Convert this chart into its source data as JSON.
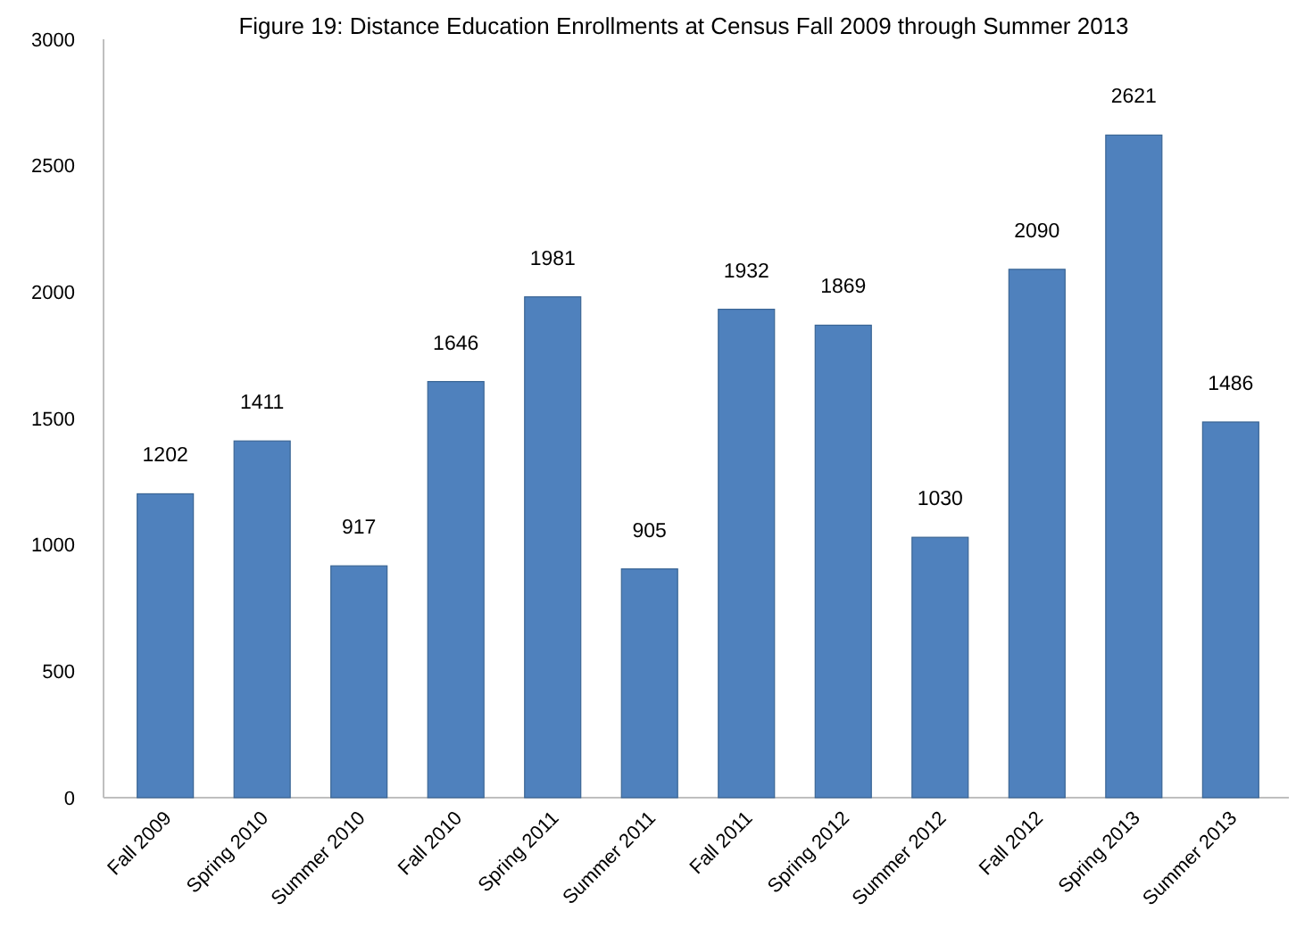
{
  "chart_data": {
    "type": "bar",
    "title": "Figure 19: Distance Education Enrollments at Census Fall 2009 through Summer 2013",
    "categories": [
      "Fall 2009",
      "Spring 2010",
      "Summer 2010",
      "Fall 2010",
      "Spring 2011",
      "Summer 2011",
      "Fall 2011",
      "Spring 2012",
      "Summer 2012",
      "Fall 2012",
      "Spring 2013",
      "Summer 2013"
    ],
    "values": [
      1202,
      1411,
      917,
      1646,
      1981,
      905,
      1932,
      1869,
      1030,
      2090,
      2621,
      1486
    ],
    "color": "#4f81bd",
    "ylim": [
      0,
      3000
    ],
    "yticks": [
      0,
      500,
      1000,
      1500,
      2000,
      2500,
      3000
    ],
    "data_labels": true
  }
}
